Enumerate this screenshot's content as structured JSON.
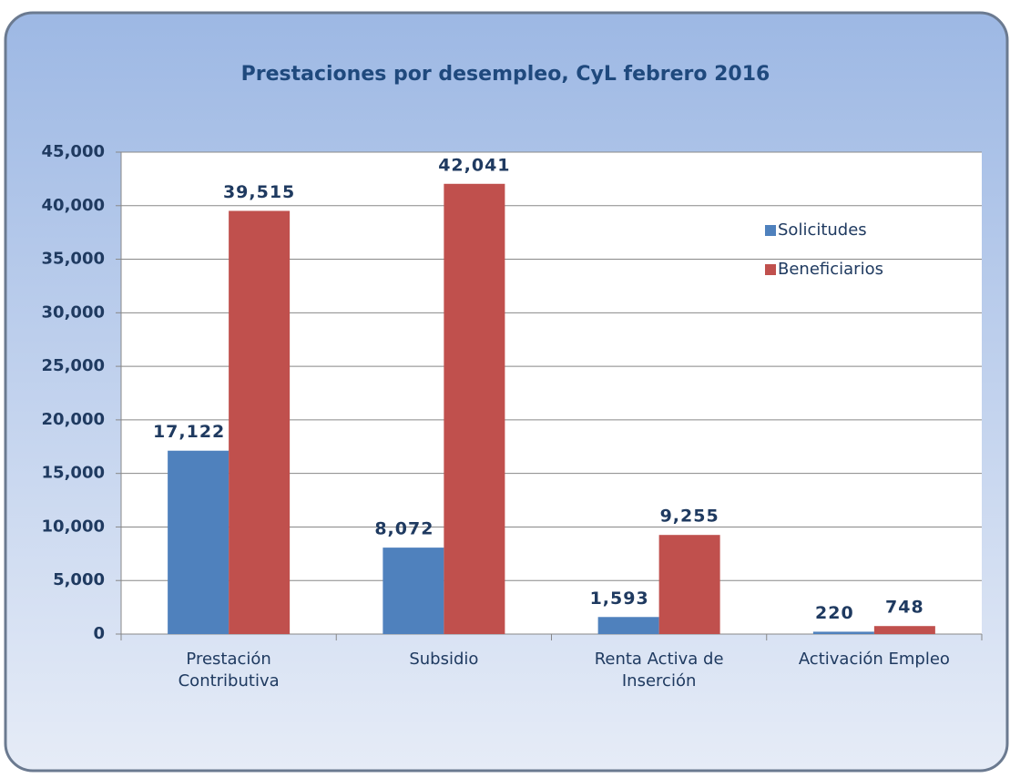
{
  "chart_data": {
    "type": "bar",
    "title": "Prestaciones por desempleo, CyL febrero 2016",
    "categories": [
      [
        "Prestación",
        "Contributiva"
      ],
      [
        "Subsidio"
      ],
      [
        "Renta Activa de",
        "Inserción"
      ],
      [
        "Activación Empleo"
      ]
    ],
    "series": [
      {
        "name": "Solicitudes",
        "color": "#4f81bd",
        "values": [
          17122,
          8072,
          1593,
          220
        ],
        "value_labels": [
          "17,122",
          "8,072",
          "1,593",
          "220"
        ]
      },
      {
        "name": "Beneficiarios",
        "color": "#c0504d",
        "values": [
          39515,
          42041,
          9255,
          748
        ],
        "value_labels": [
          "39,515",
          "42,041",
          "9,255",
          "748"
        ]
      }
    ],
    "ylim": [
      0,
      45000
    ],
    "yticks": [
      0,
      {
        "value": 5000,
        "label": "5,000"
      },
      {
        "value": 10000,
        "label": "10,000"
      },
      {
        "value": 15000,
        "label": "15,000"
      },
      {
        "value": 20000,
        "label": "20,000"
      },
      {
        "value": 25000,
        "label": "25,000"
      },
      {
        "value": 30000,
        "label": "30,000"
      },
      {
        "value": 35000,
        "label": "35,000"
      },
      {
        "value": 40000,
        "label": "40,000"
      },
      {
        "value": 45000,
        "label": "45,000"
      }
    ],
    "grid": true,
    "legend": "upper right"
  }
}
